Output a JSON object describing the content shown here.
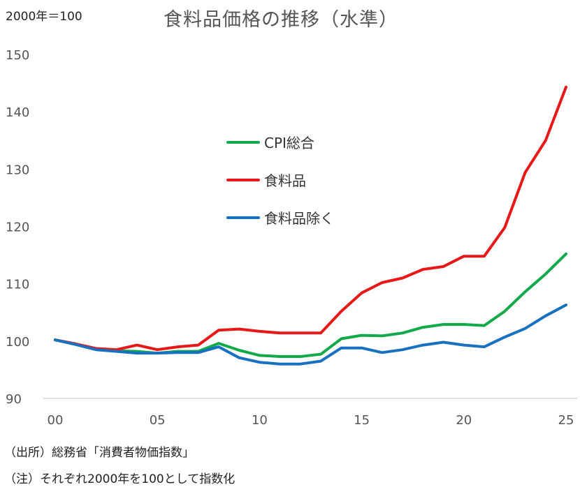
{
  "chart_data": {
    "type": "line",
    "title": "食料品価格の推移（水準）",
    "ylabel": "2000年＝100",
    "xlabel": "",
    "x": [
      0,
      1,
      2,
      3,
      4,
      5,
      6,
      7,
      8,
      9,
      10,
      11,
      12,
      13,
      14,
      15,
      16,
      17,
      18,
      19,
      20,
      21,
      22,
      23,
      24,
      25
    ],
    "x_tick_values": [
      0,
      5,
      10,
      15,
      20,
      25
    ],
    "x_tick_labels": [
      "00",
      "05",
      "10",
      "15",
      "20",
      "25"
    ],
    "y_ticks": [
      90,
      100,
      110,
      120,
      130,
      140,
      150
    ],
    "ylim": [
      90,
      150
    ],
    "xlim": [
      0,
      25
    ],
    "grid": false,
    "legend_position": "center",
    "series": [
      {
        "name": "CPI総合",
        "color": "#12a94a",
        "values": [
          100.2,
          99.5,
          98.6,
          98.3,
          98.2,
          97.9,
          98.2,
          98.2,
          99.6,
          98.4,
          97.5,
          97.3,
          97.3,
          97.7,
          100.4,
          101.0,
          100.9,
          101.4,
          102.4,
          102.9,
          102.9,
          102.7,
          105.2,
          108.6,
          111.7,
          115.2
        ]
      },
      {
        "name": "食料品",
        "color": "#e81818",
        "values": [
          100.2,
          99.5,
          98.7,
          98.5,
          99.3,
          98.5,
          99.0,
          99.3,
          101.9,
          102.1,
          101.7,
          101.4,
          101.4,
          101.4,
          105.2,
          108.4,
          110.2,
          111.0,
          112.5,
          113.0,
          114.8,
          114.8,
          119.8,
          129.4,
          135.0,
          144.3
        ]
      },
      {
        "name": "食料品除く",
        "color": "#1870c0",
        "values": [
          100.2,
          99.4,
          98.5,
          98.2,
          97.9,
          97.9,
          98.0,
          98.0,
          99.0,
          97.1,
          96.3,
          96.0,
          96.0,
          96.5,
          98.8,
          98.8,
          98.0,
          98.5,
          99.3,
          99.8,
          99.3,
          99.0,
          100.7,
          102.2,
          104.4,
          106.3
        ]
      }
    ]
  },
  "notes": {
    "source": "（出所）総務省「消費者物価指数」",
    "remark": "（注）それぞれ2000年を100として指数化"
  }
}
